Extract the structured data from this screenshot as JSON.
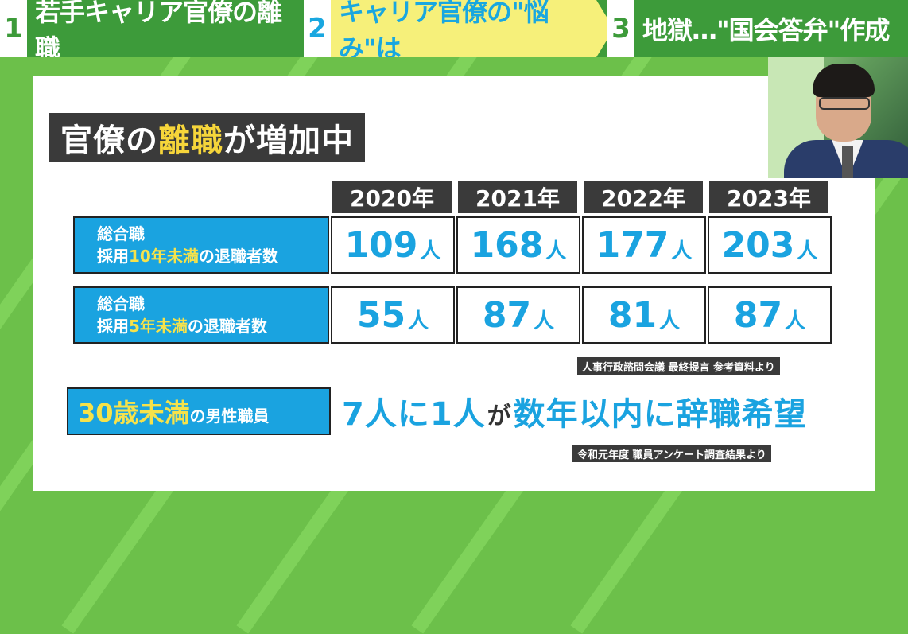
{
  "nav": {
    "tabs": [
      {
        "num": "1",
        "label": "若手キャリア官僚の離職"
      },
      {
        "num": "2",
        "label": "キャリア官僚の\"悩み\"は"
      },
      {
        "num": "3",
        "label": "地獄…\"国会答弁\"作成"
      }
    ]
  },
  "board": {
    "heading_pre": "官僚の",
    "heading_hl": "離職",
    "heading_post": "が増加中",
    "years": [
      "2020年",
      "2021年",
      "2022年",
      "2023年"
    ],
    "rows": [
      {
        "line1": "総合職",
        "line2_pre": "採用",
        "line2_hl": "10年未満",
        "line2_post": "の退職者数",
        "values": [
          "109",
          "168",
          "177",
          "203"
        ],
        "unit": "人"
      },
      {
        "line1": "総合職",
        "line2_pre": "採用",
        "line2_hl": "5年未満",
        "line2_post": "の退職者数",
        "values": [
          "55",
          "87",
          "81",
          "87"
        ],
        "unit": "人"
      }
    ],
    "source1": "人事行政諮問会議 最終提言 参考資料より",
    "bottom_label_hl": "30歳未満",
    "bottom_label_rest": "の男性職員",
    "statement_a": "7人に1人",
    "statement_b": "が",
    "statement_c": "数年以内に辞職希望",
    "source2": "令和元年度 職員アンケート調査結果より"
  },
  "colors": {
    "green_bg": "#6cc04a",
    "nav_green": "#3d9b3a",
    "accent_blue": "#1aa3e0",
    "accent_yellow": "#f6e24a",
    "dark": "#3a3a3a"
  }
}
